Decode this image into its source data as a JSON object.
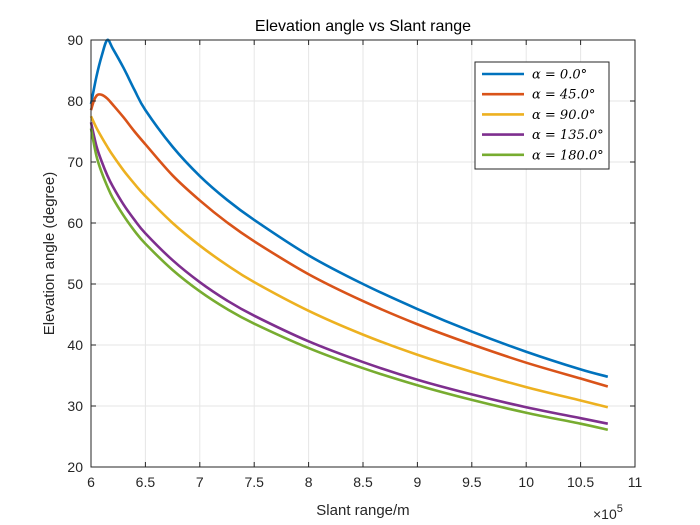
{
  "chart_data": {
    "type": "line",
    "title": "Elevation angle vs Slant range",
    "xlabel": "Slant range/m",
    "ylabel": "Elevation angle (degree)",
    "x_exponent_base": "×10",
    "x_exponent_power": "5",
    "xlim": [
      6,
      11
    ],
    "ylim": [
      20,
      90
    ],
    "x_scale_note": "x values in units of 10^5 m",
    "xticks": [
      6,
      6.5,
      7,
      7.5,
      8,
      8.5,
      9,
      9.5,
      10,
      10.5,
      11
    ],
    "xtick_labels": [
      "6",
      "6.5",
      "7",
      "7.5",
      "8",
      "8.5",
      "9",
      "9.5",
      "10",
      "10.5",
      "11"
    ],
    "yticks": [
      20,
      30,
      40,
      50,
      60,
      70,
      80,
      90
    ],
    "ytick_labels": [
      "20",
      "30",
      "40",
      "50",
      "60",
      "70",
      "80",
      "90"
    ],
    "grid": true,
    "legend_position": "top-right",
    "series": [
      {
        "name": "α = 0.0°",
        "color": "#0072BD",
        "x": [
          6.0,
          6.05,
          6.1,
          6.15,
          6.2,
          6.3,
          6.4,
          6.5,
          6.75,
          7.0,
          7.25,
          7.5,
          8.0,
          8.5,
          9.0,
          9.5,
          10.0,
          10.5,
          10.75
        ],
        "y": [
          79.5,
          84.0,
          87.5,
          90.0,
          88.6,
          85.4,
          81.8,
          78.5,
          72.5,
          67.7,
          63.8,
          60.5,
          54.7,
          50.0,
          45.9,
          42.2,
          38.9,
          36.0,
          34.8
        ]
      },
      {
        "name": "α = 45.0°",
        "color": "#D95319",
        "x": [
          6.0,
          6.03,
          6.06,
          6.1,
          6.15,
          6.2,
          6.3,
          6.4,
          6.5,
          6.75,
          7.0,
          7.25,
          7.5,
          8.0,
          8.5,
          9.0,
          9.5,
          10.0,
          10.5,
          10.75
        ],
        "y": [
          78.5,
          80.2,
          81.0,
          81.0,
          80.4,
          79.4,
          77.3,
          75.0,
          72.9,
          67.8,
          63.7,
          60.1,
          57.0,
          51.6,
          47.2,
          43.4,
          40.1,
          37.1,
          34.5,
          33.2
        ]
      },
      {
        "name": "α = 90.0°",
        "color": "#EDB120",
        "x": [
          6.0,
          6.05,
          6.1,
          6.15,
          6.2,
          6.3,
          6.4,
          6.5,
          6.75,
          7.0,
          7.25,
          7.5,
          8.0,
          8.5,
          9.0,
          9.5,
          10.0,
          10.5,
          10.75
        ],
        "y": [
          77.5,
          75.6,
          74.0,
          72.5,
          71.1,
          68.6,
          66.4,
          64.4,
          60.0,
          56.3,
          53.1,
          50.3,
          45.6,
          41.7,
          38.4,
          35.6,
          33.1,
          30.9,
          29.8
        ]
      },
      {
        "name": "α = 135.0°",
        "color": "#7E2F8E",
        "x": [
          6.0,
          6.05,
          6.1,
          6.15,
          6.2,
          6.3,
          6.4,
          6.5,
          6.75,
          7.0,
          7.25,
          7.5,
          8.0,
          8.5,
          9.0,
          9.5,
          10.0,
          10.5,
          10.75
        ],
        "y": [
          76.5,
          72.6,
          70.0,
          67.8,
          66.0,
          63.0,
          60.5,
          58.3,
          53.9,
          50.3,
          47.3,
          44.8,
          40.6,
          37.2,
          34.3,
          31.9,
          29.8,
          28.0,
          27.1
        ]
      },
      {
        "name": "α = 180.0°",
        "color": "#77AC30",
        "x": [
          6.0,
          6.05,
          6.1,
          6.15,
          6.2,
          6.3,
          6.4,
          6.5,
          6.75,
          7.0,
          7.25,
          7.5,
          8.0,
          8.5,
          9.0,
          9.5,
          10.0,
          10.5,
          10.75
        ],
        "y": [
          75.5,
          71.0,
          68.2,
          66.0,
          64.1,
          61.2,
          58.7,
          56.6,
          52.3,
          48.8,
          45.9,
          43.5,
          39.5,
          36.2,
          33.4,
          31.0,
          28.9,
          27.1,
          26.1
        ]
      }
    ]
  }
}
